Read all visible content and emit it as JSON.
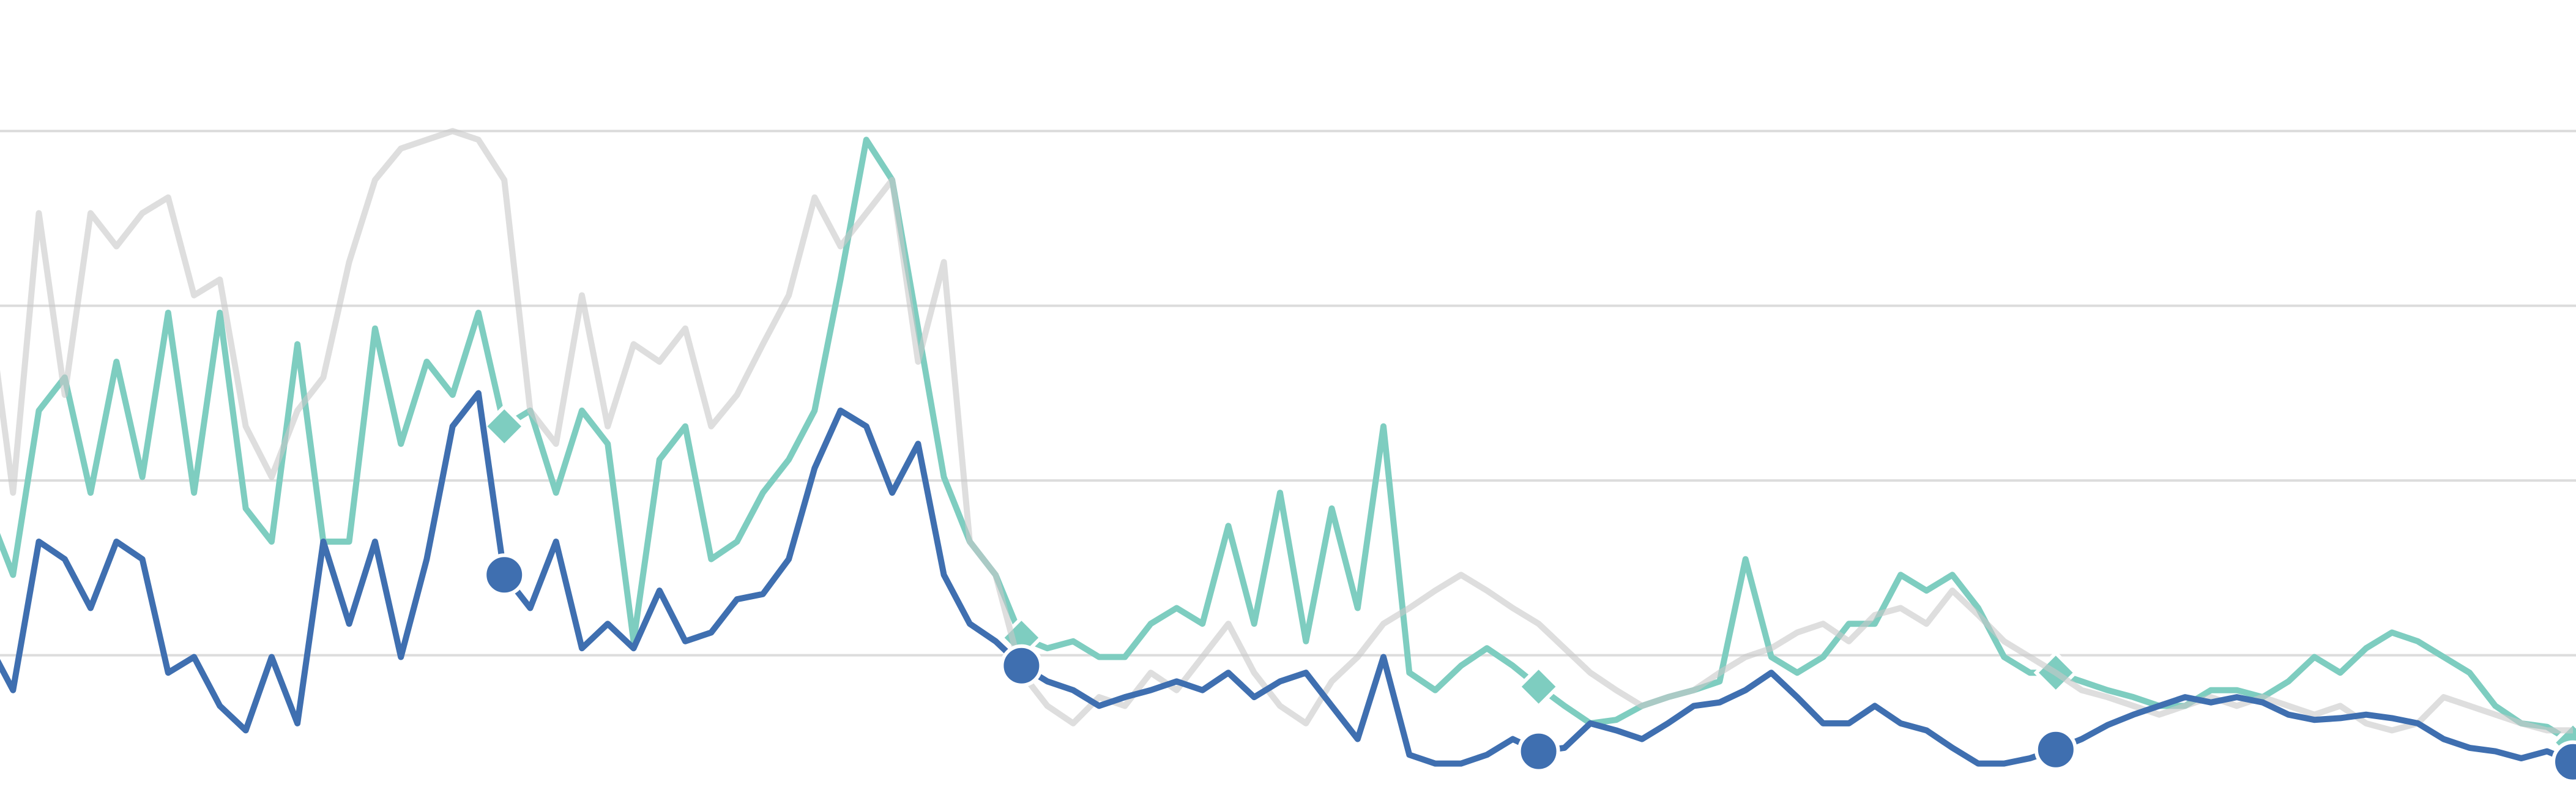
{
  "chart_data": {
    "type": "line",
    "ylim": [
      20,
      475
    ],
    "yticks": [
      100,
      200,
      300,
      400
    ],
    "grid": true,
    "series": [
      {
        "color": "#7ecdc0",
        "marker": "diamond",
        "markevery": [
          20,
          20
        ],
        "values": [
          184,
          146,
          240,
          259,
          193,
          268,
          202,
          296,
          193,
          296,
          184,
          165,
          278,
          165,
          165,
          287,
          221,
          268,
          249,
          296,
          231,
          240,
          193,
          240,
          221,
          108,
          212,
          231,
          155,
          165,
          193,
          212,
          240,
          315,
          395,
          372,
          287,
          202,
          165,
          146,
          110,
          104,
          108,
          99,
          99,
          118,
          127,
          118,
          174,
          118,
          193,
          108,
          184,
          127,
          231,
          90,
          80,
          94,
          104,
          94,
          82,
          71,
          61,
          63,
          71,
          76,
          80,
          85,
          155,
          99,
          90,
          99,
          118,
          118,
          146,
          137,
          146,
          127,
          99,
          90,
          90,
          85,
          80,
          76,
          71,
          71,
          80,
          80,
          76,
          85,
          99,
          90,
          104,
          113,
          108,
          99,
          90,
          71,
          61,
          59,
          50
        ]
      },
      {
        "color": "#c8c8c8",
        "opacity": 0.6,
        "values": [
          306,
          193,
          353,
          249,
          353,
          334,
          353,
          362,
          306,
          315,
          231,
          202,
          240,
          259,
          325,
          372,
          390,
          395,
          400,
          395,
          372,
          240,
          221,
          306,
          231,
          278,
          268,
          287,
          231,
          249,
          278,
          306,
          362,
          334,
          353,
          372,
          268,
          325,
          165,
          146,
          90,
          71,
          61,
          76,
          71,
          90,
          80,
          99,
          118,
          90,
          71,
          61,
          85,
          99,
          118,
          127,
          137,
          146,
          137,
          127,
          118,
          104,
          90,
          80,
          71,
          76,
          80,
          90,
          99,
          104,
          113,
          118,
          108,
          123,
          127,
          118,
          137,
          123,
          108,
          99,
          90,
          80,
          76,
          71,
          66,
          71,
          76,
          71,
          76,
          71,
          66,
          71,
          61,
          57,
          61,
          76,
          71,
          66,
          61,
          57,
          57
        ]
      },
      {
        "color": "#3f6fb0",
        "marker": "circle",
        "markevery": [
          20,
          20
        ],
        "values": [
          108,
          80,
          165,
          155,
          127,
          165,
          155,
          90,
          99,
          71,
          57,
          99,
          61,
          165,
          118,
          165,
          99,
          155,
          231,
          250,
          146,
          127,
          165,
          104,
          118,
          104,
          137,
          108,
          113,
          132,
          135,
          155,
          207,
          240,
          231,
          193,
          221,
          146,
          118,
          108,
          94,
          85,
          80,
          71,
          76,
          80,
          85,
          80,
          90,
          76,
          85,
          90,
          71,
          52,
          99,
          43,
          38,
          38,
          43,
          52,
          45,
          47,
          61,
          57,
          52,
          61,
          71,
          73,
          80,
          90,
          76,
          61,
          61,
          71,
          61,
          57,
          47,
          38,
          38,
          41,
          46,
          52,
          60,
          66,
          71,
          76,
          73,
          76,
          73,
          66,
          63,
          64,
          66,
          64,
          61,
          52,
          47,
          45,
          41,
          45,
          39
        ]
      }
    ]
  }
}
